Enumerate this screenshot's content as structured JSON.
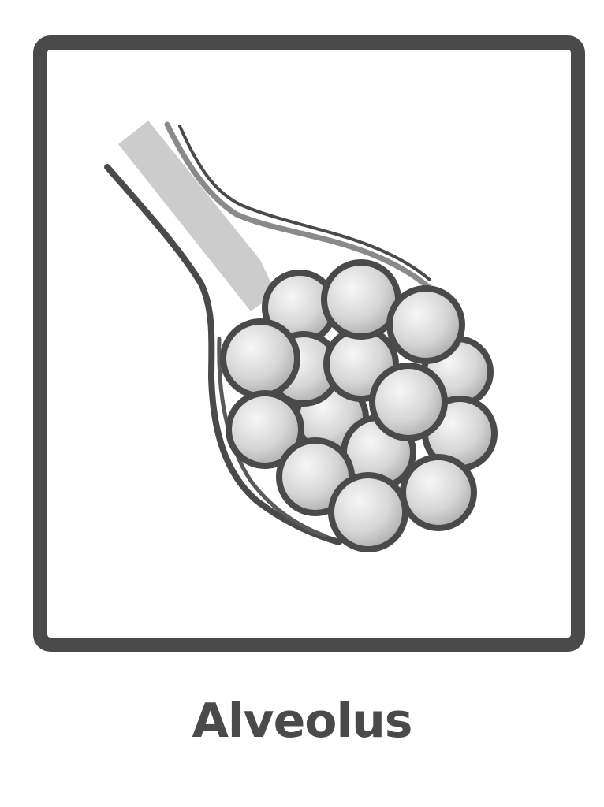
{
  "card": {
    "caption": "Alveolus",
    "illustration_icon": "alveolus-icon",
    "colors": {
      "frame": "#4a4a4a",
      "caption": "#4a4a4a",
      "outline": "#4a4a4a",
      "duct_fill": "#cccccc",
      "vessel_line": "#8a8a8a",
      "sac_light": "#f4f4f4",
      "sac_shade": "#a6a6a6",
      "background": "#ffffff"
    }
  }
}
